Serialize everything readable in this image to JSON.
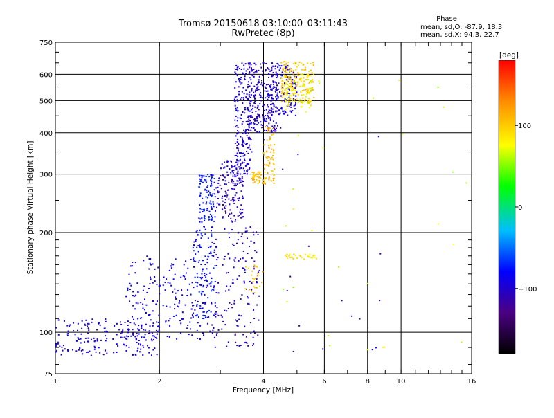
{
  "chart_data": {
    "type": "scatter",
    "title": "Tromsø 20150618 03:10:00–03:11:43",
    "subtitle": "RwPretec (8p)",
    "xlabel": "Frequency [MHz]",
    "ylabel": "Stationary phase Virtual Height [km]",
    "x_scale": "log",
    "y_scale": "log",
    "xlim": [
      1,
      16
    ],
    "ylim": [
      75,
      750
    ],
    "x_ticks": [
      1,
      2,
      4,
      6,
      8,
      10,
      16
    ],
    "x_tick_labels": [
      "1",
      "2",
      "4",
      "6",
      "8",
      "10",
      "16"
    ],
    "y_ticks": [
      75,
      100,
      200,
      300,
      400,
      500,
      600,
      750
    ],
    "y_tick_labels": [
      "75",
      "100",
      "200",
      "300",
      "400",
      "500",
      "600",
      "750"
    ],
    "grid": true,
    "phase_box": {
      "heading": "Phase",
      "line_o": "mean, sd,O: -87.9, 18.3",
      "line_x": "mean, sd,X:  94.3, 22.7"
    },
    "colorbar": {
      "label": "[deg]",
      "range": [
        -180,
        180
      ],
      "ticks": [
        100,
        0,
        -100
      ],
      "tick_labels": [
        "100",
        "0",
        "−100"
      ],
      "colors": [
        "#000000",
        "#4b0082",
        "#0000ff",
        "#00bfff",
        "#00ff00",
        "#ffff00",
        "#ff8c00",
        "#ff0000"
      ]
    },
    "clusters": [
      {
        "name": "",
        "phase": -95,
        "x": [
          1.0,
          2.0
        ],
        "y": [
          85,
          110
        ],
        "count": 200
      },
      {
        "name": "",
        "phase": -90,
        "x": [
          1.6,
          2.8
        ],
        "y": [
          95,
          170
        ],
        "count": 200
      },
      {
        "name": "",
        "phase": -75,
        "x": [
          2.5,
          2.9
        ],
        "y": [
          110,
          210
        ],
        "count": 110
      },
      {
        "name": "",
        "phase": -100,
        "x": [
          2.8,
          3.9
        ],
        "y": [
          90,
          210
        ],
        "count": 170
      },
      {
        "name": "",
        "phase": -75,
        "x": [
          2.6,
          2.9
        ],
        "y": [
          215,
          300
        ],
        "count": 110
      },
      {
        "name": "",
        "phase": -105,
        "x": [
          2.9,
          3.5
        ],
        "y": [
          215,
          300
        ],
        "count": 130
      },
      {
        "name": "",
        "phase": -95,
        "x": [
          3.0,
          3.6
        ],
        "y": [
          300,
          330
        ],
        "count": 40
      },
      {
        "name": "",
        "phase": -95,
        "x": [
          3.3,
          3.7
        ],
        "y": [
          300,
          650
        ],
        "count": 200
      },
      {
        "name": "",
        "phase": -100,
        "x": [
          3.6,
          4.4
        ],
        "y": [
          400,
          650
        ],
        "count": 250
      },
      {
        "name": "",
        "phase": -95,
        "x": [
          4.2,
          5.0
        ],
        "y": [
          450,
          650
        ],
        "count": 140
      },
      {
        "name": "",
        "phase": 100,
        "x": [
          4.5,
          5.6
        ],
        "y": [
          490,
          660
        ],
        "count": 180
      },
      {
        "name": "",
        "phase": 75,
        "x": [
          4.6,
          5.5
        ],
        "y": [
          470,
          600
        ],
        "count": 70
      },
      {
        "name": "",
        "phase": 110,
        "x": [
          3.7,
          4.3
        ],
        "y": [
          280,
          305
        ],
        "count": 60
      },
      {
        "name": "",
        "phase": 110,
        "x": [
          4.0,
          4.3
        ],
        "y": [
          300,
          420
        ],
        "count": 55
      },
      {
        "name": "",
        "phase": 105,
        "x": [
          3.5,
          4.0
        ],
        "y": [
          130,
          160
        ],
        "count": 24
      },
      {
        "name": "",
        "phase": 90,
        "x": [
          4.6,
          5.7
        ],
        "y": [
          166,
          172
        ],
        "count": 30
      },
      {
        "name": "",
        "phase": 70,
        "x": [
          4.5,
          16.0
        ],
        "y": [
          85,
          650
        ],
        "count": 30
      },
      {
        "name": "",
        "phase": -110,
        "x": [
          4.0,
          9.0
        ],
        "y": [
          85,
          420
        ],
        "count": 18
      }
    ]
  }
}
